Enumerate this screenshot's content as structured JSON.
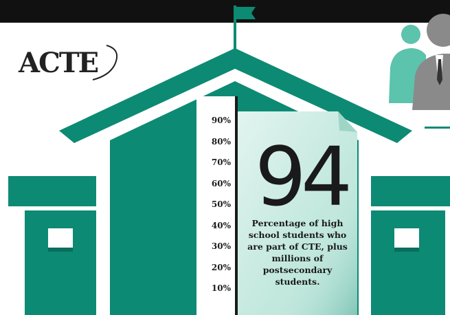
{
  "logo": {
    "text": "ACTE"
  },
  "scale": {
    "labels": [
      "90%",
      "80%",
      "70%",
      "60%",
      "50%",
      "40%",
      "30%",
      "20%",
      "10%"
    ]
  },
  "stat": {
    "number": "94",
    "caption": "Percentage of high school students who are part of CTE, plus millions of postsecondary students.",
    "fill_percent": 94
  },
  "colors": {
    "teal": "#0d8a73",
    "teal_light": "#5cc3ac",
    "page": "#bfe7dc",
    "gray": "#8a8a8a",
    "dark": "#111111"
  },
  "icons": [
    "flag-icon",
    "school-building-icon",
    "people-icon"
  ]
}
